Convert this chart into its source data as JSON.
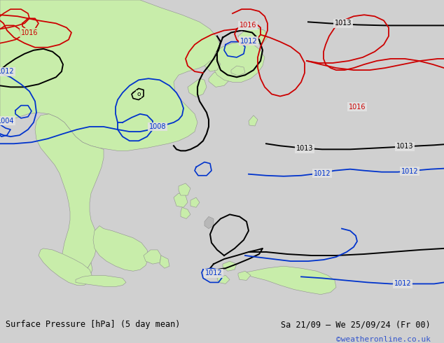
{
  "title_left": "Surface Pressure [hPa] (5 day mean)",
  "title_right": "Sa 21/09 – We 25/09/24 (Fr 00)",
  "credit": "©weatheronline.co.uk",
  "bg_map": "#e2e2e2",
  "bg_footer": "#d0d0d0",
  "land_green": "#c8edaa",
  "land_gray": "#b8b8b8",
  "black": "#000000",
  "blue": "#0033cc",
  "red": "#cc0000",
  "credit_color": "#3355cc",
  "figsize": [
    6.34,
    4.9
  ],
  "dpi": 100
}
